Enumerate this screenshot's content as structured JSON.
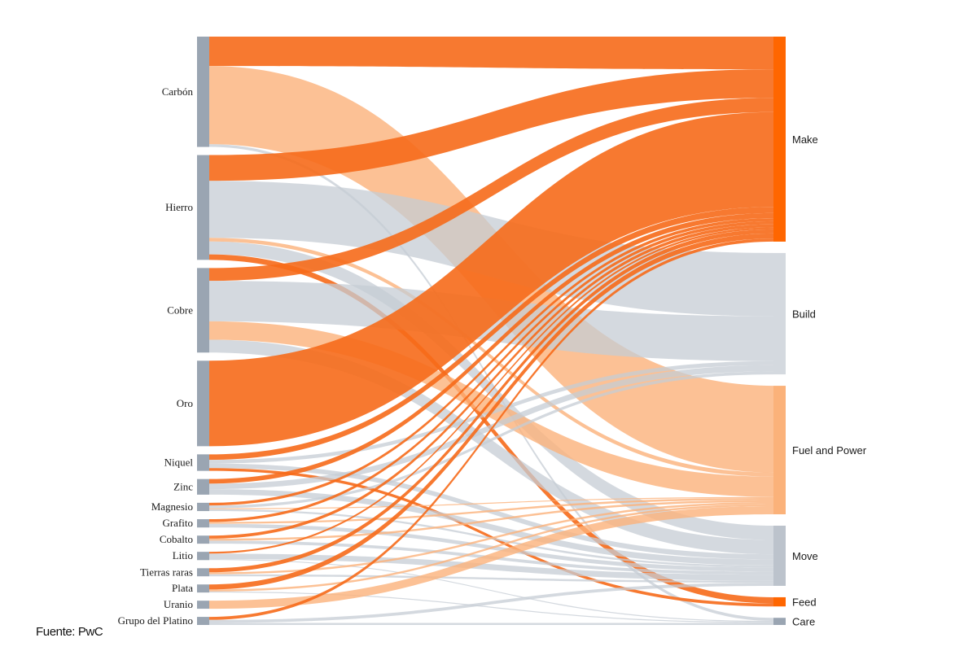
{
  "source_note": "Fuente: PwC",
  "colors": {
    "orange": "#f66a1a",
    "light_orange": "#fbb27a",
    "gray": "#c5ccd4",
    "node_gray": "#9aa5b2",
    "node_orange": "#ff6600",
    "node_light_orange": "#fbb27a",
    "node_light_gray": "#d4d9df"
  },
  "chart_data": {
    "type": "sankey",
    "title": "",
    "sources": [
      {
        "name": "Carbón"
      },
      {
        "name": "Hierro"
      },
      {
        "name": "Cobre"
      },
      {
        "name": "Oro"
      },
      {
        "name": "Niquel"
      },
      {
        "name": "Zinc"
      },
      {
        "name": "Magnesio"
      },
      {
        "name": "Grafito"
      },
      {
        "name": "Cobalto"
      },
      {
        "name": "Litio"
      },
      {
        "name": "Tierras raras"
      },
      {
        "name": "Plata"
      },
      {
        "name": "Uranio"
      },
      {
        "name": "Grupo del Platino"
      }
    ],
    "targets": [
      {
        "name": "Make",
        "color": "#ff6600"
      },
      {
        "name": "Build",
        "color": "#d4d9df"
      },
      {
        "name": "Fuel and Power",
        "color": "#fbb27a"
      },
      {
        "name": "Move",
        "color": "#bcc3cc"
      },
      {
        "name": "Feed",
        "color": "#ff6600"
      },
      {
        "name": "Care",
        "color": "#9aa5b2"
      }
    ],
    "links": [
      {
        "source": "Carbón",
        "target": "Make",
        "value": 32,
        "color": "orange"
      },
      {
        "source": "Carbón",
        "target": "Care",
        "value": 3,
        "color": "gray"
      },
      {
        "source": "Carbón",
        "target": "Fuel and Power",
        "value": 85,
        "color": "light_orange"
      },
      {
        "source": "Hierro",
        "target": "Make",
        "value": 28,
        "color": "orange"
      },
      {
        "source": "Hierro",
        "target": "Build",
        "value": 62,
        "color": "gray"
      },
      {
        "source": "Hierro",
        "target": "Fuel and Power",
        "value": 4,
        "color": "light_orange"
      },
      {
        "source": "Hierro",
        "target": "Move",
        "value": 14,
        "color": "gray"
      },
      {
        "source": "Hierro",
        "target": "Feed",
        "value": 6,
        "color": "orange"
      },
      {
        "source": "Cobre",
        "target": "Make",
        "value": 14,
        "color": "orange"
      },
      {
        "source": "Cobre",
        "target": "Build",
        "value": 44,
        "color": "gray"
      },
      {
        "source": "Cobre",
        "target": "Fuel and Power",
        "value": 20,
        "color": "light_orange"
      },
      {
        "source": "Cobre",
        "target": "Move",
        "value": 14,
        "color": "gray"
      },
      {
        "source": "Oro",
        "target": "Make",
        "value": 93,
        "color": "orange"
      },
      {
        "source": "Niquel",
        "target": "Make",
        "value": 6,
        "color": "orange"
      },
      {
        "source": "Niquel",
        "target": "Build",
        "value": 4,
        "color": "gray"
      },
      {
        "source": "Niquel",
        "target": "Move",
        "value": 5,
        "color": "gray"
      },
      {
        "source": "Niquel",
        "target": "Feed",
        "value": 3,
        "color": "orange"
      },
      {
        "source": "Zinc",
        "target": "Make",
        "value": 5,
        "color": "orange"
      },
      {
        "source": "Zinc",
        "target": "Build",
        "value": 6,
        "color": "gray"
      },
      {
        "source": "Zinc",
        "target": "Move",
        "value": 6,
        "color": "gray"
      },
      {
        "source": "Magnesio",
        "target": "Make",
        "value": 3,
        "color": "orange"
      },
      {
        "source": "Magnesio",
        "target": "Build",
        "value": 3,
        "color": "gray"
      },
      {
        "source": "Magnesio",
        "target": "Fuel and Power",
        "value": 1,
        "color": "light_orange"
      },
      {
        "source": "Magnesio",
        "target": "Move",
        "value": 2,
        "color": "gray"
      },
      {
        "source": "Grafito",
        "target": "Make",
        "value": 3,
        "color": "orange"
      },
      {
        "source": "Grafito",
        "target": "Fuel and Power",
        "value": 2,
        "color": "light_orange"
      },
      {
        "source": "Grafito",
        "target": "Move",
        "value": 4,
        "color": "gray"
      },
      {
        "source": "Cobalto",
        "target": "Make",
        "value": 3,
        "color": "orange"
      },
      {
        "source": "Cobalto",
        "target": "Fuel and Power",
        "value": 2,
        "color": "light_orange"
      },
      {
        "source": "Cobalto",
        "target": "Move",
        "value": 3,
        "color": "gray"
      },
      {
        "source": "Litio",
        "target": "Make",
        "value": 2,
        "color": "orange"
      },
      {
        "source": "Litio",
        "target": "Move",
        "value": 6,
        "color": "gray"
      },
      {
        "source": "Litio",
        "target": "Care",
        "value": 1,
        "color": "gray"
      },
      {
        "source": "Tierras raras",
        "target": "Make",
        "value": 4,
        "color": "orange"
      },
      {
        "source": "Tierras raras",
        "target": "Fuel and Power",
        "value": 2,
        "color": "light_orange"
      },
      {
        "source": "Tierras raras",
        "target": "Move",
        "value": 2,
        "color": "gray"
      },
      {
        "source": "Plata",
        "target": "Make",
        "value": 5,
        "color": "orange"
      },
      {
        "source": "Plata",
        "target": "Fuel and Power",
        "value": 2,
        "color": "light_orange"
      },
      {
        "source": "Plata",
        "target": "Care",
        "value": 1,
        "color": "gray"
      },
      {
        "source": "Uranio",
        "target": "Fuel and Power",
        "value": 8,
        "color": "light_orange"
      },
      {
        "source": "Grupo del Platino",
        "target": "Make",
        "value": 3,
        "color": "orange"
      },
      {
        "source": "Grupo del Platino",
        "target": "Move",
        "value": 3,
        "color": "gray"
      },
      {
        "source": "Grupo del Platino",
        "target": "Care",
        "value": 2,
        "color": "gray"
      }
    ]
  }
}
